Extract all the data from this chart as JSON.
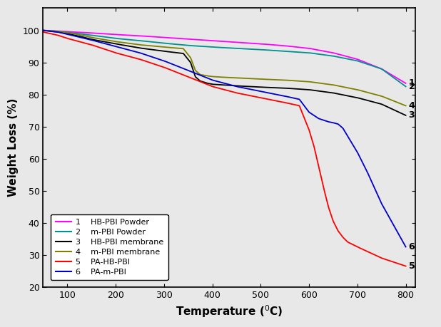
{
  "title": "",
  "xlabel": "Temperature ($^0$C)",
  "ylabel": "Weight Loss (%)",
  "xlim": [
    50,
    820
  ],
  "ylim": [
    20,
    107
  ],
  "background_color": "#e8e8e8",
  "plot_bg": "#e8e8e8",
  "series": [
    {
      "label": "HB-PBI Powder",
      "number": "1",
      "color": "#ff00ff",
      "x": [
        50,
        80,
        100,
        150,
        200,
        250,
        300,
        350,
        400,
        450,
        500,
        550,
        600,
        650,
        700,
        750,
        800
      ],
      "y": [
        100,
        99.8,
        99.6,
        99.2,
        98.7,
        98.3,
        97.8,
        97.3,
        96.8,
        96.3,
        95.8,
        95.2,
        94.4,
        93.0,
        91.0,
        88.0,
        83.5
      ]
    },
    {
      "label": "m-PBI Powder",
      "number": "2",
      "color": "#009090",
      "x": [
        50,
        80,
        100,
        150,
        200,
        250,
        300,
        350,
        400,
        450,
        500,
        550,
        600,
        650,
        700,
        750,
        800
      ],
      "y": [
        100,
        99.7,
        99.4,
        98.5,
        97.5,
        96.8,
        96.0,
        95.3,
        94.8,
        94.4,
        94.0,
        93.5,
        93.0,
        92.0,
        90.5,
        88.0,
        82.5
      ]
    },
    {
      "label": "HB-PBI membrane",
      "number": "3",
      "color": "#000000",
      "x": [
        50,
        80,
        100,
        130,
        150,
        200,
        250,
        300,
        340,
        355,
        365,
        375,
        390,
        400,
        420,
        450,
        500,
        550,
        600,
        650,
        700,
        750,
        800
      ],
      "y": [
        100,
        99.5,
        99.0,
        98.0,
        97.2,
        95.8,
        94.5,
        93.5,
        92.8,
        90.0,
        85.5,
        84.2,
        83.5,
        83.2,
        83.0,
        82.7,
        82.3,
        82.0,
        81.5,
        80.5,
        79.0,
        77.0,
        73.5
      ]
    },
    {
      "label": "m-PBI membrane",
      "number": "4",
      "color": "#808000",
      "x": [
        50,
        80,
        100,
        130,
        150,
        200,
        250,
        300,
        340,
        355,
        365,
        375,
        390,
        400,
        420,
        450,
        500,
        550,
        600,
        650,
        700,
        750,
        800
      ],
      "y": [
        100,
        99.7,
        99.3,
        98.5,
        97.8,
        96.5,
        95.5,
        94.8,
        94.3,
        91.5,
        87.5,
        86.2,
        85.8,
        85.6,
        85.4,
        85.2,
        84.8,
        84.5,
        84.0,
        83.0,
        81.5,
        79.5,
        76.5
      ]
    },
    {
      "label": "PA-HB-PBI",
      "number": "5",
      "color": "#ff0000",
      "x": [
        50,
        80,
        100,
        150,
        200,
        250,
        300,
        350,
        400,
        450,
        500,
        550,
        580,
        600,
        610,
        620,
        630,
        640,
        650,
        660,
        670,
        680,
        700,
        750,
        800
      ],
      "y": [
        99.5,
        98.5,
        97.5,
        95.5,
        93.0,
        91.0,
        88.5,
        85.5,
        82.5,
        80.5,
        79.0,
        77.5,
        76.5,
        69.0,
        64.0,
        57.5,
        51.0,
        45.0,
        40.5,
        37.5,
        35.5,
        34.0,
        32.5,
        29.0,
        26.5
      ]
    },
    {
      "label": "PA-m-PBI",
      "number": "6",
      "color": "#0000cc",
      "x": [
        50,
        80,
        100,
        150,
        200,
        250,
        300,
        350,
        400,
        450,
        500,
        550,
        580,
        600,
        620,
        630,
        640,
        650,
        660,
        670,
        680,
        700,
        720,
        750,
        800
      ],
      "y": [
        100,
        99.5,
        98.8,
        97.0,
        95.0,
        93.0,
        90.5,
        87.5,
        84.5,
        82.5,
        81.0,
        79.5,
        78.5,
        74.5,
        72.5,
        72.0,
        71.5,
        71.2,
        70.8,
        69.5,
        67.0,
        62.0,
        56.0,
        46.0,
        32.5
      ]
    }
  ],
  "legend_labels": [
    {
      "num": "1",
      "text": "HB-PBI Powder"
    },
    {
      "num": "2",
      "text": "m-PBI Powder"
    },
    {
      "num": "3",
      "text": "HB-PBI membrane"
    },
    {
      "num": "4",
      "text": "m-PBI membrane"
    },
    {
      "num": "5",
      "text": "PA-HB-PBI"
    },
    {
      "num": "6",
      "text": "PA-m-PBI"
    }
  ],
  "right_labels": [
    {
      "num": "1",
      "y": 83.5
    },
    {
      "num": "2",
      "y": 82.5
    },
    {
      "num": "4",
      "y": 76.5
    },
    {
      "num": "3",
      "y": 73.5
    },
    {
      "num": "6",
      "y": 32.5
    },
    {
      "num": "5",
      "y": 26.5
    }
  ],
  "xticks": [
    100,
    200,
    300,
    400,
    500,
    600,
    700,
    800
  ],
  "yticks": [
    20,
    30,
    40,
    50,
    60,
    70,
    80,
    90,
    100
  ]
}
